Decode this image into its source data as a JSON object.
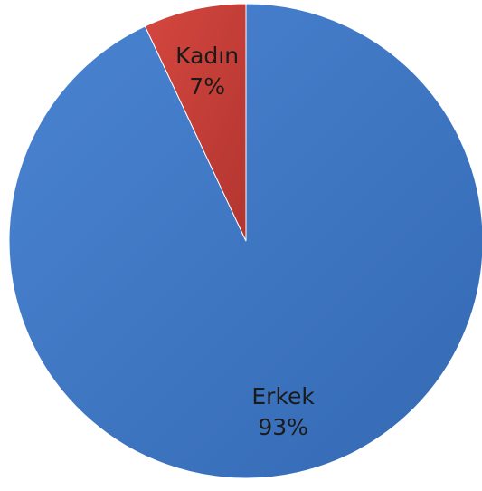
{
  "chart_data": {
    "type": "pie",
    "title": "",
    "start_angle_deg": 0,
    "direction": "clockwise",
    "legend": "none",
    "slices": [
      {
        "label": "Erkek",
        "value": 93,
        "percent_label": "93%",
        "color": "#3f77c4"
      },
      {
        "label": "Kadın",
        "value": 7,
        "percent_label": "7%",
        "color": "#cc3f3a"
      }
    ]
  }
}
